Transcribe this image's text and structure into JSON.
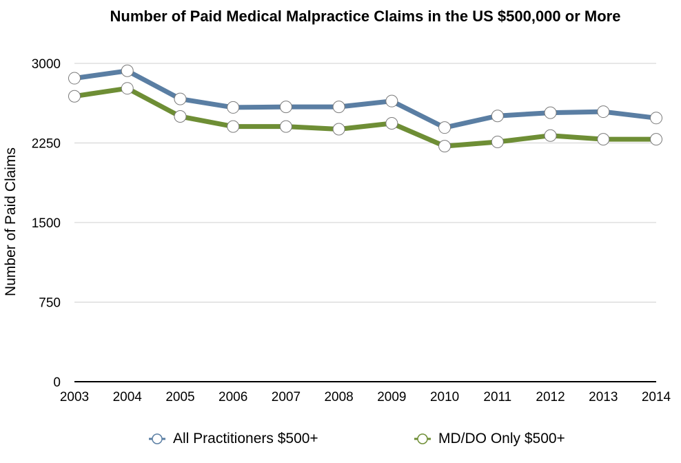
{
  "chart_data": {
    "type": "line",
    "title": "Number of Paid Medical Malpractice Claims in the US  $500,000 or More",
    "xlabel": "",
    "ylabel": "Number of Paid Claims",
    "categories": [
      "2003",
      "2004",
      "2005",
      "2006",
      "2007",
      "2008",
      "2009",
      "2010",
      "2011",
      "2012",
      "2013",
      "2014"
    ],
    "ylim": [
      0,
      3000
    ],
    "yticks": [
      "0",
      "750",
      "1500",
      "2250",
      "3000"
    ],
    "grid": true,
    "legend_position": "bottom",
    "series": [
      {
        "name": "All Practitioners $500+",
        "color": "#5a7ea3",
        "values": [
          2860,
          2930,
          2665,
          2585,
          2590,
          2590,
          2645,
          2395,
          2505,
          2535,
          2545,
          2485
        ]
      },
      {
        "name": "MD/DO Only $500+",
        "color": "#6e8e35",
        "values": [
          2690,
          2765,
          2500,
          2405,
          2405,
          2380,
          2435,
          2220,
          2260,
          2320,
          2285,
          2285
        ]
      }
    ]
  }
}
